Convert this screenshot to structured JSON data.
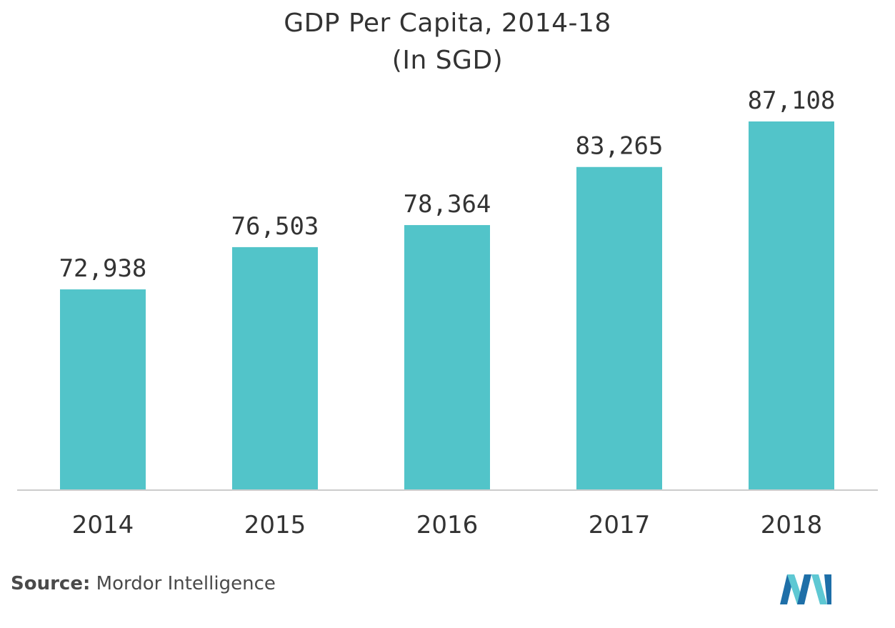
{
  "chart_data": {
    "type": "bar",
    "title": "GDP Per Capita, 2014-18",
    "subtitle": "(In SGD)",
    "categories": [
      "2014",
      "2015",
      "2016",
      "2017",
      "2018"
    ],
    "values": [
      72938,
      76503,
      78364,
      83265,
      87108
    ],
    "value_labels": [
      "72,938",
      "76,503",
      "78,364",
      "83,265",
      "87,108"
    ],
    "xlabel": "",
    "ylabel": "",
    "grid": false,
    "legend": "none",
    "bar_color": "#52c4c9",
    "axis_color": "#cccccc"
  },
  "source": {
    "label": "Source:",
    "text": "Mordor Intelligence"
  },
  "logo": {
    "icon": "mordor-intelligence-logo-icon",
    "colors": [
      "#1e6fa8",
      "#5ec8d3"
    ]
  }
}
